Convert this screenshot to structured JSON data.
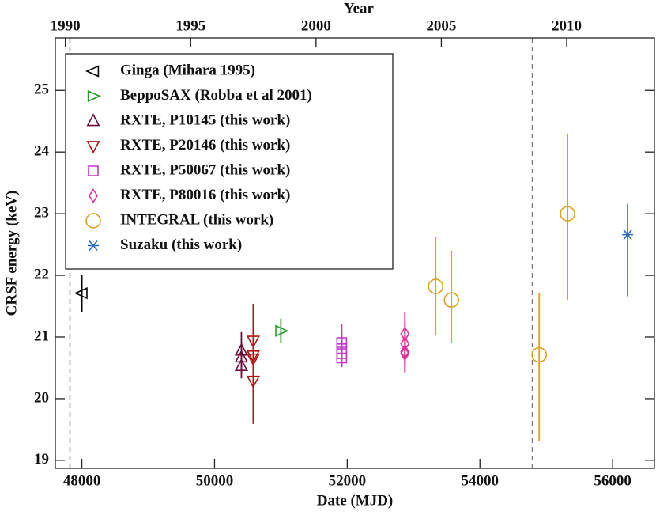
{
  "chart_data": {
    "type": "scatter",
    "xlabel": "Date (MJD)",
    "ylabel": "CRSF energy (keV)",
    "x2label": "Year",
    "xlim": [
      47600,
      56630
    ],
    "xticks": [
      48000,
      50000,
      52000,
      54000,
      56000
    ],
    "ylim": [
      18.87,
      25.85
    ],
    "yticks": [
      19,
      20,
      21,
      22,
      23,
      24,
      25
    ],
    "x2lim": [
      1989.6,
      2013.5
    ],
    "x2ticks": [
      1990,
      1995,
      2000,
      2005,
      2010
    ],
    "reference_lines": [
      47820,
      54790
    ],
    "legend": "upper left",
    "series": [
      {
        "name": "Ginga (Mihara 1995)",
        "color": "#000000",
        "marker": "triangle-left",
        "x": [
          48000
        ],
        "y": [
          21.71
        ],
        "err_minus": [
          0.3
        ],
        "err_plus": [
          0.3
        ]
      },
      {
        "name": "BeppoSAX (Robba et al 2001)",
        "color": "#2a9a2a",
        "marker": "triangle-right",
        "x": [
          51000
        ],
        "y": [
          21.1
        ],
        "err_minus": [
          0.2
        ],
        "err_plus": [
          0.2
        ]
      },
      {
        "name": "RXTE, P10145 (this work)",
        "color": "#6b0d3a",
        "marker": "triangle-up",
        "x": [
          50405,
          50405,
          50405
        ],
        "y": [
          20.78,
          20.67,
          20.53
        ],
        "err_minus": [
          0.3,
          0.25,
          0.2
        ],
        "err_plus": [
          0.3,
          0.25,
          0.2
        ]
      },
      {
        "name": "RXTE, P20146 (this work)",
        "color": "#b01515",
        "marker": "triangle-down",
        "x": [
          50583,
          50583,
          50583,
          50583
        ],
        "y": [
          20.94,
          20.7,
          20.65,
          20.29
        ],
        "err_minus": [
          0.6,
          0.5,
          0.5,
          0.7
        ],
        "err_plus": [
          0.6,
          0.5,
          0.5,
          0.6
        ]
      },
      {
        "name": "RXTE, P50067 (this work)",
        "color": "#cc33cc",
        "marker": "square",
        "x": [
          51917,
          51917,
          51917,
          51917
        ],
        "y": [
          20.91,
          20.81,
          20.73,
          20.66
        ],
        "err_minus": [
          0.3,
          0.3,
          0.2,
          0.15
        ],
        "err_plus": [
          0.3,
          0.3,
          0.3,
          0.3
        ]
      },
      {
        "name": "RXTE, P80016 (this work)",
        "color": "#e0309a",
        "marker": "diamond",
        "x": [
          52869,
          52869,
          52869,
          52869
        ],
        "y": [
          21.05,
          20.89,
          20.76,
          20.73
        ],
        "err_minus": [
          0.35,
          0.35,
          0.35,
          0.3
        ],
        "err_plus": [
          0.35,
          0.35,
          0.35,
          0.3
        ]
      },
      {
        "name": "INTEGRAL (this work)",
        "color": "#e0a020",
        "marker": "circle",
        "x": [
          53333,
          53571,
          54893,
          55321
        ],
        "y": [
          21.82,
          21.6,
          20.71,
          23.0
        ],
        "err_minus": [
          0.8,
          0.7,
          1.4,
          1.4
        ],
        "err_plus": [
          0.8,
          0.8,
          1.0,
          1.3
        ]
      },
      {
        "name": "Suzaku (this work)",
        "color": "#2a6ab8",
        "marker": "star",
        "x": [
          56226
        ],
        "y": [
          22.66
        ],
        "err_minus": [
          1.0
        ],
        "err_plus": [
          0.5
        ]
      }
    ]
  }
}
